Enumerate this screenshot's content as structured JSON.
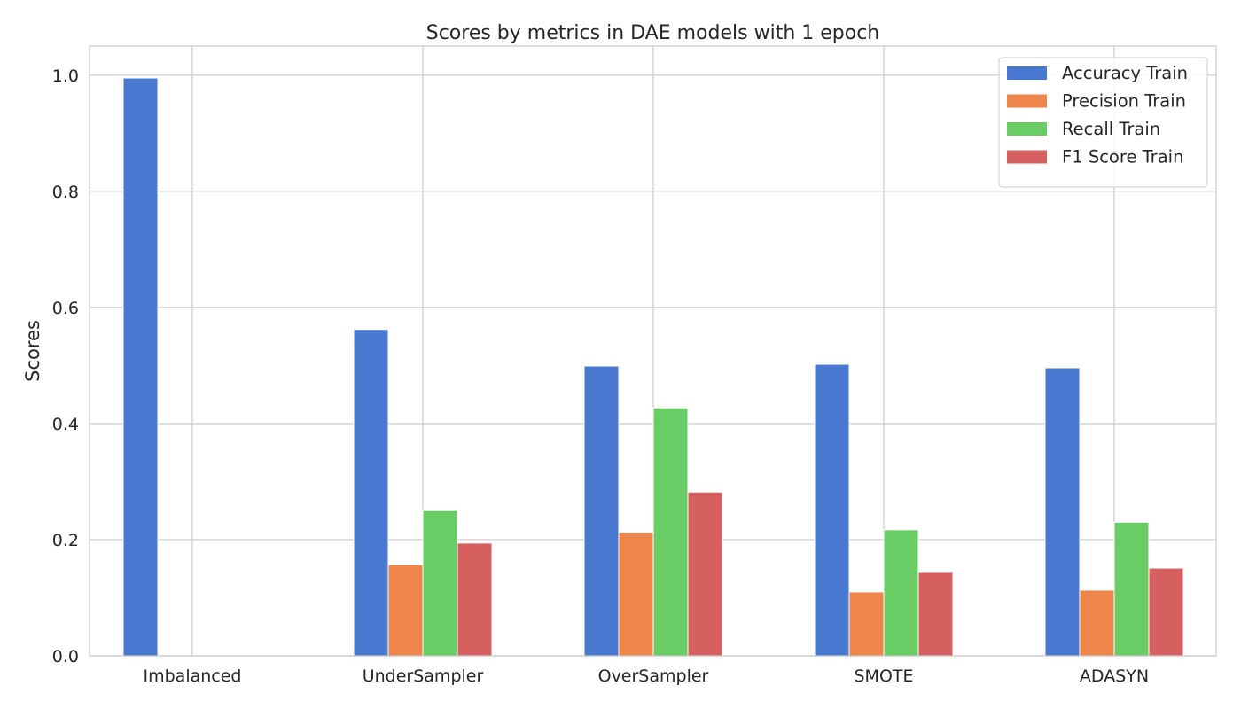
{
  "chart_data": {
    "type": "bar",
    "title": "Scores by metrics in DAE models with 1 epoch",
    "xlabel": "",
    "ylabel": "Scores",
    "categories": [
      "Imbalanced",
      "UnderSampler",
      "OverSampler",
      "SMOTE",
      "ADASYN"
    ],
    "series": [
      {
        "name": "Accuracy Train",
        "color": "#4878d0",
        "values": [
          0.995,
          0.562,
          0.499,
          0.502,
          0.496
        ]
      },
      {
        "name": "Precision Train",
        "color": "#ee854a",
        "values": [
          0.0,
          0.157,
          0.213,
          0.11,
          0.113
        ]
      },
      {
        "name": "Recall Train",
        "color": "#6acc64",
        "values": [
          0.0,
          0.25,
          0.427,
          0.217,
          0.23
        ]
      },
      {
        "name": "F1 Score Train",
        "color": "#d65f5f",
        "values": [
          0.0,
          0.194,
          0.282,
          0.145,
          0.151
        ]
      }
    ],
    "ylim": [
      0,
      1.05
    ],
    "yticks": [
      "0.0",
      "0.2",
      "0.4",
      "0.6",
      "0.8",
      "1.0"
    ],
    "grid": true,
    "legend_position": "top-right"
  }
}
